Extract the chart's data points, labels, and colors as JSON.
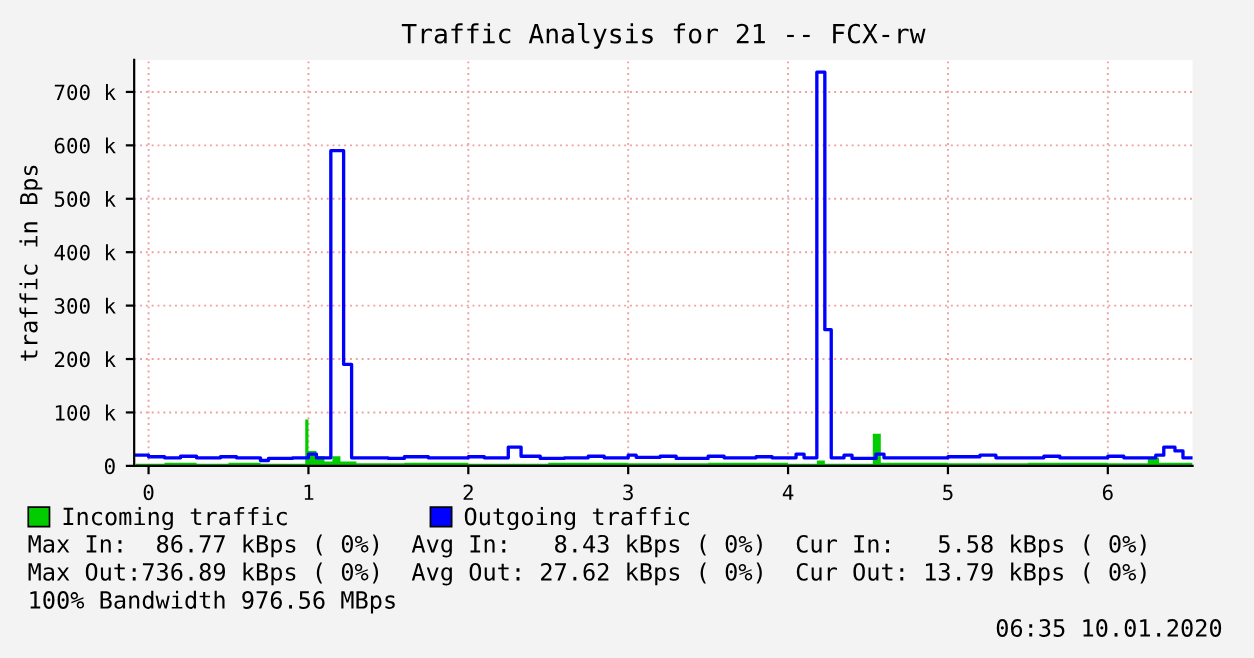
{
  "chart_data": {
    "type": "step",
    "title": "Traffic Analysis for 21 -- FCX-rw",
    "ylabel": "traffic in Bps",
    "xlim": [
      -0.09,
      6.53
    ],
    "xticks": [
      0,
      1,
      2,
      3,
      4,
      5,
      6
    ],
    "ylim": [
      0,
      760000
    ],
    "yticks": [
      0,
      {
        "value": 100000,
        "label": "100 k"
      },
      {
        "value": 200000,
        "label": "200 k"
      },
      {
        "value": 300000,
        "label": "300 k"
      },
      {
        "value": 400000,
        "label": "400 k"
      },
      {
        "value": 500000,
        "label": "500 k"
      },
      {
        "value": 600000,
        "label": "600 k"
      },
      {
        "value": 700000,
        "label": "700 k"
      }
    ],
    "grid": true,
    "legend": "bottom",
    "series": [
      {
        "name": "Incoming traffic",
        "type": "area",
        "color": "#00cc00",
        "x": [
          -0.08,
          0.1,
          0.3,
          0.5,
          0.7,
          0.98,
          1.0,
          1.05,
          1.1,
          1.15,
          1.2,
          1.3,
          1.6,
          2.0,
          2.5,
          3.0,
          3.5,
          4.0,
          4.18,
          4.23,
          4.53,
          4.58,
          5.0,
          5.5,
          6.0,
          6.25,
          6.32,
          6.53
        ],
        "values": [
          4000,
          6000,
          4000,
          6000,
          4000,
          87000,
          28000,
          18000,
          8000,
          18000,
          8000,
          5000,
          6000,
          4000,
          6000,
          5000,
          6000,
          4000,
          10000,
          4000,
          60000,
          6000,
          5000,
          6000,
          5000,
          15000,
          6000,
          6000
        ]
      },
      {
        "name": "Outgoing traffic",
        "color": "#0000ff",
        "x": [
          -0.08,
          0.0,
          0.1,
          0.2,
          0.3,
          0.45,
          0.55,
          0.7,
          0.75,
          0.9,
          1.0,
          1.05,
          1.14,
          1.22,
          1.27,
          1.5,
          1.6,
          1.75,
          2.0,
          2.1,
          2.25,
          2.33,
          2.45,
          2.6,
          2.75,
          2.85,
          3.0,
          3.05,
          3.2,
          3.3,
          3.5,
          3.6,
          3.8,
          3.9,
          4.05,
          4.1,
          4.18,
          4.23,
          4.27,
          4.35,
          4.4,
          4.55,
          4.6,
          5.0,
          5.2,
          5.3,
          5.6,
          5.7,
          6.0,
          6.1,
          6.3,
          6.35,
          6.42,
          6.47,
          6.53
        ],
        "values": [
          20000,
          17000,
          15000,
          18000,
          15000,
          17000,
          15000,
          10000,
          14000,
          15000,
          22000,
          15000,
          590000,
          190000,
          15000,
          14000,
          17000,
          15000,
          17000,
          15000,
          35000,
          18000,
          14000,
          15000,
          18000,
          15000,
          20000,
          16000,
          18000,
          14000,
          18000,
          15000,
          17000,
          15000,
          22000,
          15000,
          737000,
          255000,
          15000,
          20000,
          14000,
          22000,
          15000,
          17000,
          20000,
          15000,
          18000,
          15000,
          18000,
          15000,
          20000,
          35000,
          28000,
          15000,
          15000
        ]
      }
    ],
    "annotations": [
      "Max In:  86.77 kBps ( 0%)  Avg In:   8.43 kBps ( 0%)  Cur In:   5.58 kBps ( 0%)",
      "Max Out:736.89 kBps ( 0%)  Avg Out: 27.62 kBps ( 0%)  Cur Out: 13.79 kBps ( 0%)",
      "100% Bandwidth 976.56 MBps",
      "06:35 10.01.2020"
    ]
  }
}
